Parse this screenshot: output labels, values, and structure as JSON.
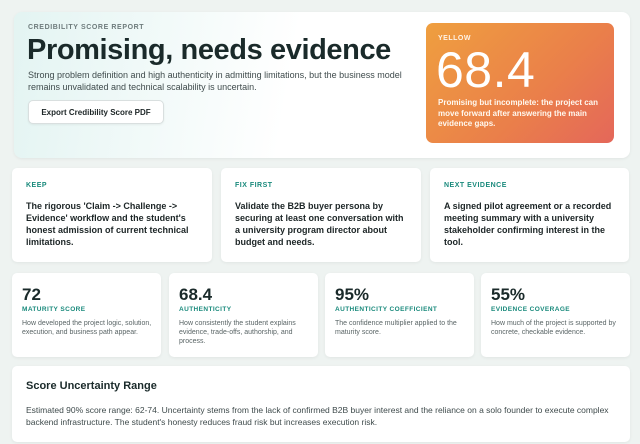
{
  "hero": {
    "eyebrow": "CREDIBILITY SCORE REPORT",
    "title": "Promising, needs evidence",
    "description": "Strong problem definition and high authenticity in admitting limitations, but the business model remains unvalidated and technical scalability is uncertain.",
    "export_label": "Export Credibility Score PDF"
  },
  "score": {
    "label": "YELLOW",
    "value": "68.4",
    "description": "Promising but incomplete: the project can move forward after answering the main evidence gaps.",
    "colors": {
      "gradient_start": "#ef9f3f",
      "gradient_end": "#e4675a"
    }
  },
  "feedback": [
    {
      "heading": "KEEP",
      "text": "The rigorous 'Claim -> Challenge -> Evidence' workflow and the student's honest admission of current technical limitations."
    },
    {
      "heading": "FIX FIRST",
      "text": "Validate the B2B buyer persona by securing at least one conversation with a university program director about budget and needs."
    },
    {
      "heading": "NEXT EVIDENCE",
      "text": "A signed pilot agreement or a recorded meeting summary with a university stakeholder confirming interest in the tool."
    }
  ],
  "metrics": [
    {
      "value": "72",
      "label": "MATURITY SCORE",
      "description": "How developed the project logic, solution, execution, and business path appear."
    },
    {
      "value": "68.4",
      "label": "AUTHENTICITY",
      "description": "How consistently the student explains evidence, trade-offs, authorship, and process."
    },
    {
      "value": "95%",
      "label": "AUTHENTICITY COEFFICIENT",
      "description": "The confidence multiplier applied to the maturity score."
    },
    {
      "value": "55%",
      "label": "EVIDENCE COVERAGE",
      "description": "How much of the project is supported by concrete, checkable evidence."
    }
  ],
  "uncertainty": {
    "title": "Score Uncertainty Range",
    "description": "Estimated 90% score range: 62-74. Uncertainty stems from the lack of confirmed B2B buyer interest and the reliance on a solo founder to execute complex backend infrastructure. The student's honesty reduces fraud risk but increases execution risk."
  },
  "accent_color": "#1a8a7c"
}
